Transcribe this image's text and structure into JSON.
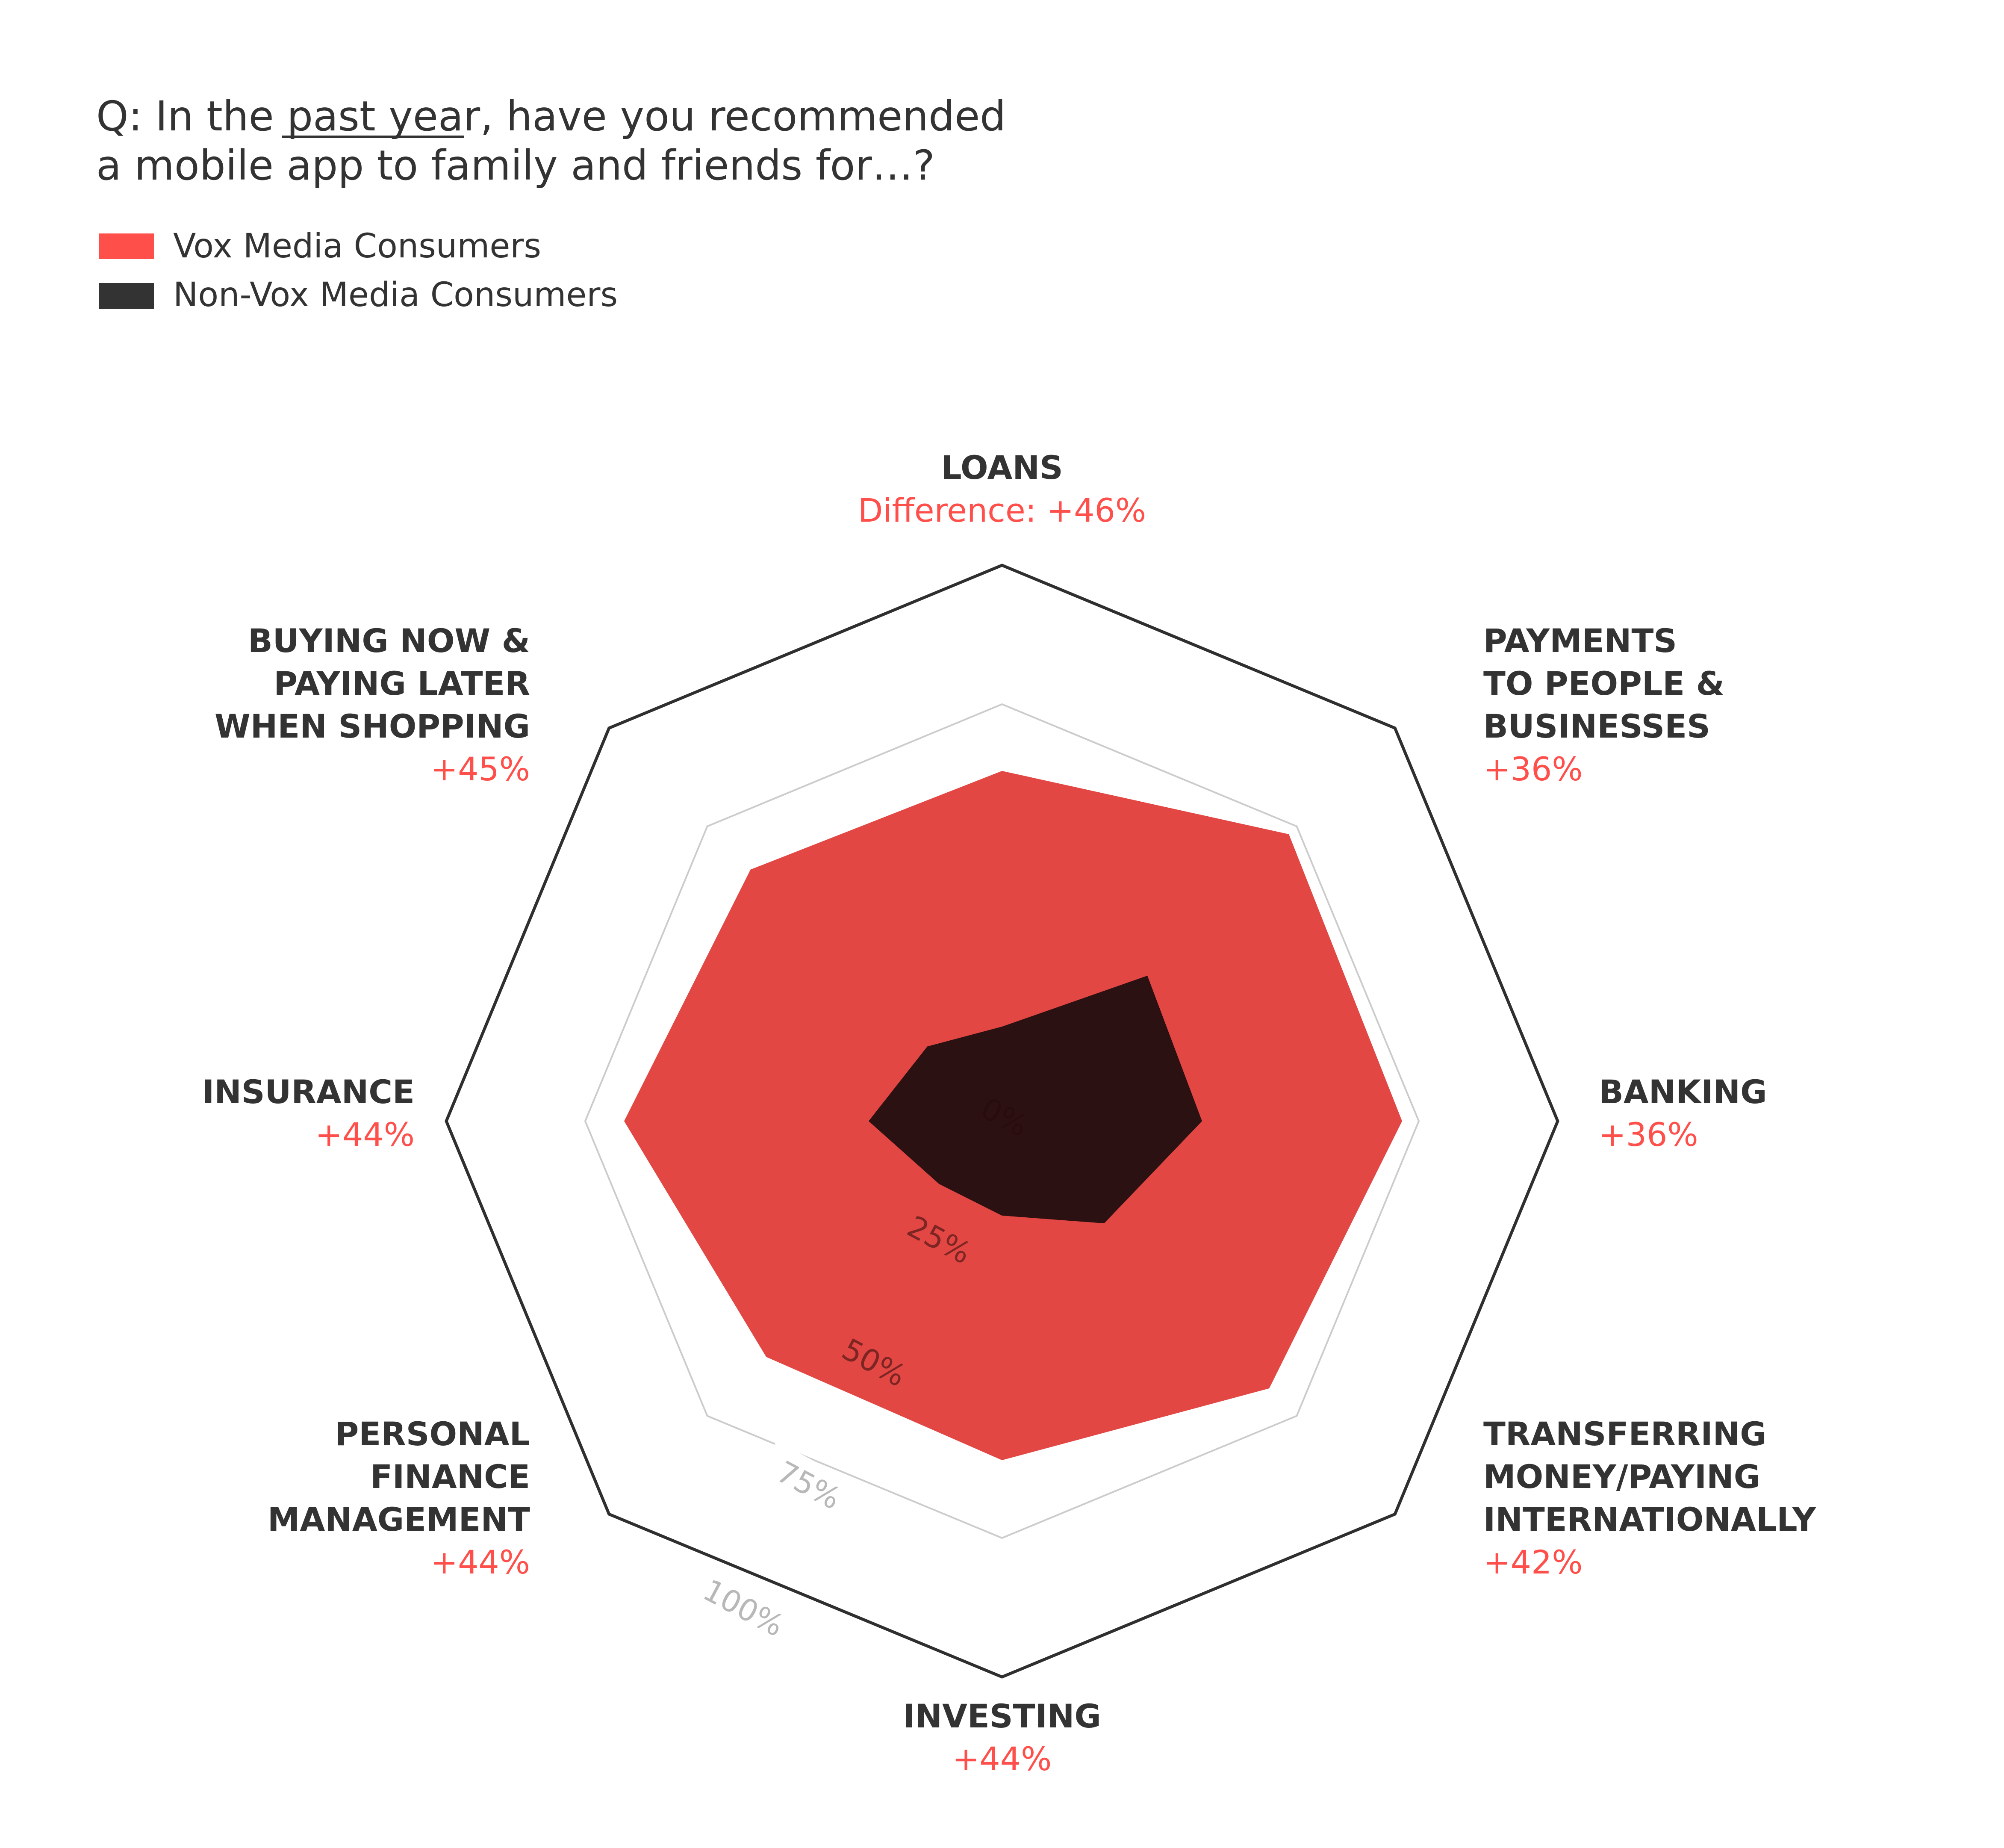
{
  "question": {
    "prefix": "Q: In the ",
    "underlined": "past year",
    "suffix": ", have you recommended",
    "line2": "a mobile app to family and friends for…?"
  },
  "legend": [
    {
      "label": "Vox Media Consumers",
      "color": "#ff4f4b"
    },
    {
      "label": "Non-Vox Media Consumers",
      "color": "#333333"
    }
  ],
  "colors": {
    "vox_fill": "#e24744",
    "non_vox_fill": "#2b1111",
    "outer_ring": "#2f2f2f",
    "grid_ring": "#cccccc",
    "label_text": "#333333",
    "diff_text": "#ff4f4b"
  },
  "chart_data": {
    "type": "radar",
    "axes": [
      {
        "label": [
          "LOANS"
        ],
        "difference": "Difference: +46%"
      },
      {
        "label": [
          "PAYMENTS",
          "TO PEOPLE &",
          "BUSINESSES"
        ],
        "difference": "+36%"
      },
      {
        "label": [
          "BANKING"
        ],
        "difference": "+36%"
      },
      {
        "label": [
          "TRANSFERRING",
          "MONEY/PAYING",
          "INTERNATIONALLY"
        ],
        "difference": "+42%"
      },
      {
        "label": [
          "INVESTING"
        ],
        "difference": "+44%"
      },
      {
        "label": [
          "PERSONAL",
          "FINANCE",
          "MANAGEMENT"
        ],
        "difference": "+44%"
      },
      {
        "label": [
          "INSURANCE"
        ],
        "difference": "+44%"
      },
      {
        "label": [
          "BUYING NOW &",
          "PAYING LATER",
          "WHEN SHOPPING"
        ],
        "difference": "+45%"
      }
    ],
    "series": [
      {
        "name": "Vox Media Consumers",
        "values": [
          63,
          73,
          72,
          68,
          61,
          60,
          68,
          64
        ]
      },
      {
        "name": "Non-Vox Media Consumers",
        "values": [
          17,
          37,
          36,
          26,
          17,
          16,
          24,
          19
        ]
      }
    ],
    "scale": {
      "min": 0,
      "max": 100,
      "ticks": [
        0,
        25,
        50,
        75,
        100
      ],
      "tick_labels": [
        "0%",
        "25%",
        "50%",
        "75%",
        "100%"
      ]
    }
  }
}
